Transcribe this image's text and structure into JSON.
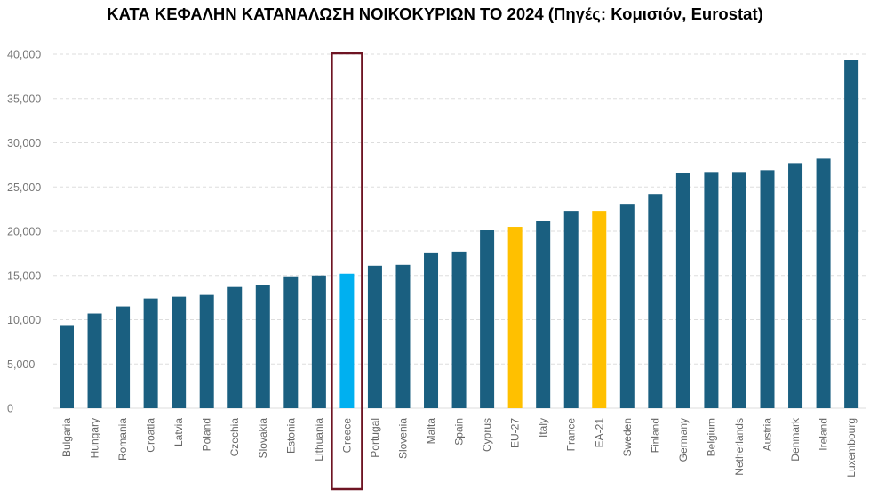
{
  "chart_data": {
    "type": "bar",
    "title": "ΚΑΤΑ ΚΕΦΑΛΗΝ ΚΑΤΑΝΑΛΩΣΗ ΝΟΙΚΟΚΥΡΙΩΝ ΤΟ 2024 (Πηγές: Κομισιόν, Eurostat)",
    "xlabel": "",
    "ylabel": "",
    "ylim": [
      0,
      40000
    ],
    "yticks": [
      0,
      5000,
      10000,
      15000,
      20000,
      25000,
      30000,
      35000,
      40000
    ],
    "ytick_labels": [
      "0",
      "5,000",
      "10,000",
      "15,000",
      "20,000",
      "25,000",
      "30,000",
      "35,000",
      "40,000"
    ],
    "grid": "horizontal dashed",
    "categories": [
      "Bulgaria",
      "Hungary",
      "Romania",
      "Croatia",
      "Latvia",
      "Poland",
      "Czechia",
      "Slovakia",
      "Estonia",
      "Lithuania",
      "Greece",
      "Portugal",
      "Slovenia",
      "Malta",
      "Spain",
      "Cyprus",
      "EU-27",
      "Italy",
      "France",
      "EA-21",
      "Sweden",
      "Finland",
      "Germany",
      "Belgium",
      "Netherlands",
      "Austria",
      "Denmark",
      "Ireland",
      "Luxembourg"
    ],
    "values": [
      9300,
      10700,
      11500,
      12400,
      12600,
      12800,
      13700,
      13900,
      14900,
      15000,
      15200,
      16100,
      16200,
      17600,
      17700,
      20100,
      20500,
      21200,
      22300,
      22300,
      23100,
      24200,
      26600,
      26700,
      26700,
      26900,
      27700,
      28200,
      39300
    ],
    "colors": {
      "default": "#1a5f80",
      "highlight": "#00b0f0",
      "aggregate": "#ffc000",
      "highlight_box": "#6e1423"
    },
    "highlighted_category": "Greece",
    "aggregate_categories": [
      "EU-27",
      "EA-21"
    ]
  }
}
